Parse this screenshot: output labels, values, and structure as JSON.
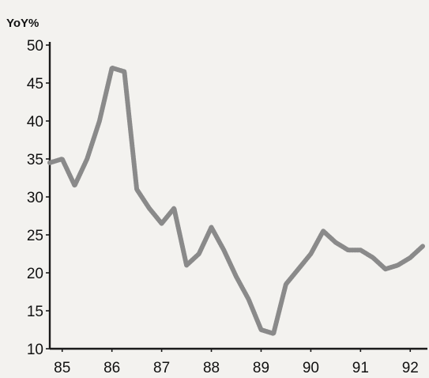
{
  "chart_data": {
    "type": "line",
    "title": "",
    "ylabel": "YoY%",
    "xlabel": "",
    "ylim": [
      10,
      50
    ],
    "xlim": [
      84.75,
      92.25
    ],
    "grid": false,
    "yticks": [
      10,
      15,
      20,
      25,
      30,
      35,
      40,
      45,
      50
    ],
    "yticklabels": [
      "10",
      "15",
      "20",
      "25",
      "30",
      "35",
      "40",
      "45",
      "50"
    ],
    "xticks": [
      85,
      86,
      87,
      88,
      89,
      90,
      91,
      92
    ],
    "xticklabels": [
      "85",
      "86",
      "87",
      "88",
      "89",
      "90",
      "91",
      "92"
    ],
    "series": [
      {
        "color": "#8a8a8a",
        "x": [
          84.75,
          85.0,
          85.25,
          85.5,
          85.75,
          86.0,
          86.25,
          86.5,
          86.75,
          87.0,
          87.25,
          87.5,
          87.75,
          88.0,
          88.25,
          88.5,
          88.75,
          89.0,
          89.25,
          89.5,
          89.75,
          90.0,
          90.25,
          90.5,
          90.75,
          91.0,
          91.25,
          91.5,
          91.75,
          92.0,
          92.25
        ],
        "y": [
          34.5,
          35,
          31.5,
          35,
          40,
          47,
          46.5,
          31,
          28.5,
          26.5,
          28.5,
          21,
          22.5,
          26,
          23,
          19.5,
          16.5,
          12.5,
          12,
          18.5,
          20.5,
          22.5,
          25.5,
          24,
          23,
          23,
          22,
          20.5,
          21,
          22,
          23.5
        ]
      }
    ]
  }
}
